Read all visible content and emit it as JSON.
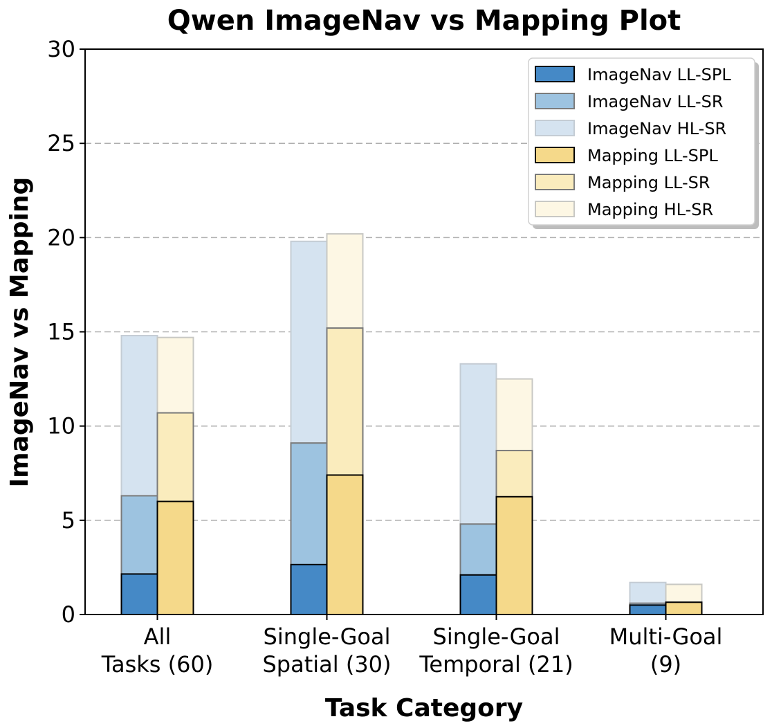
{
  "chart_data": {
    "type": "bar",
    "title": "Qwen ImageNav vs Mapping Plot",
    "xlabel": "Task Category",
    "ylabel": "ImageNav vs Mapping",
    "ylim": [
      0,
      30
    ],
    "yticks": [
      0,
      5,
      10,
      15,
      20,
      25,
      30
    ],
    "grid": "y-dashed",
    "legend_position": "top-right",
    "categories": [
      [
        "All",
        "Tasks (60)"
      ],
      [
        "Single-Goal",
        "Spatial (30)"
      ],
      [
        "Single-Goal",
        "Temporal (21)"
      ],
      [
        "Multi-Goal",
        "(9)"
      ]
    ],
    "groups": [
      {
        "name": "ImageNav",
        "layers": [
          {
            "name": "ImageNav HL-SR",
            "values": [
              14.8,
              19.8,
              13.3,
              1.7
            ],
            "color": "#d5e3f0",
            "stroke": "#c4ccd4"
          },
          {
            "name": "ImageNav LL-SR",
            "values": [
              6.3,
              9.1,
              4.8,
              0.6
            ],
            "color": "#9dc3e0",
            "stroke": "#7a7a7a"
          },
          {
            "name": "ImageNav LL-SPL",
            "values": [
              2.15,
              2.65,
              2.1,
              0.5
            ],
            "color": "#4589c6",
            "stroke": "#000000"
          }
        ]
      },
      {
        "name": "Mapping",
        "layers": [
          {
            "name": "Mapping HL-SR",
            "values": [
              14.7,
              20.2,
              12.5,
              1.6
            ],
            "color": "#fdf7e4",
            "stroke": "#c8c8c4"
          },
          {
            "name": "Mapping LL-SR",
            "values": [
              10.7,
              15.2,
              8.7,
              0.65
            ],
            "color": "#faecbd",
            "stroke": "#7a7a7a"
          },
          {
            "name": "Mapping LL-SPL",
            "values": [
              6.0,
              7.4,
              6.25,
              0.65
            ],
            "color": "#f5d98a",
            "stroke": "#000000"
          }
        ]
      }
    ],
    "legend": [
      {
        "label": "ImageNav LL-SPL",
        "color": "#4589c6",
        "stroke": "#000000"
      },
      {
        "label": "ImageNav LL-SR",
        "color": "#9dc3e0",
        "stroke": "#7a7a7a"
      },
      {
        "label": "ImageNav HL-SR",
        "color": "#d5e3f0",
        "stroke": "#c4ccd4"
      },
      {
        "label": "Mapping LL-SPL",
        "color": "#f5d98a",
        "stroke": "#000000"
      },
      {
        "label": "Mapping LL-SR",
        "color": "#faecbd",
        "stroke": "#7a7a7a"
      },
      {
        "label": "Mapping HL-SR",
        "color": "#fdf7e4",
        "stroke": "#c8c8c4"
      }
    ]
  }
}
